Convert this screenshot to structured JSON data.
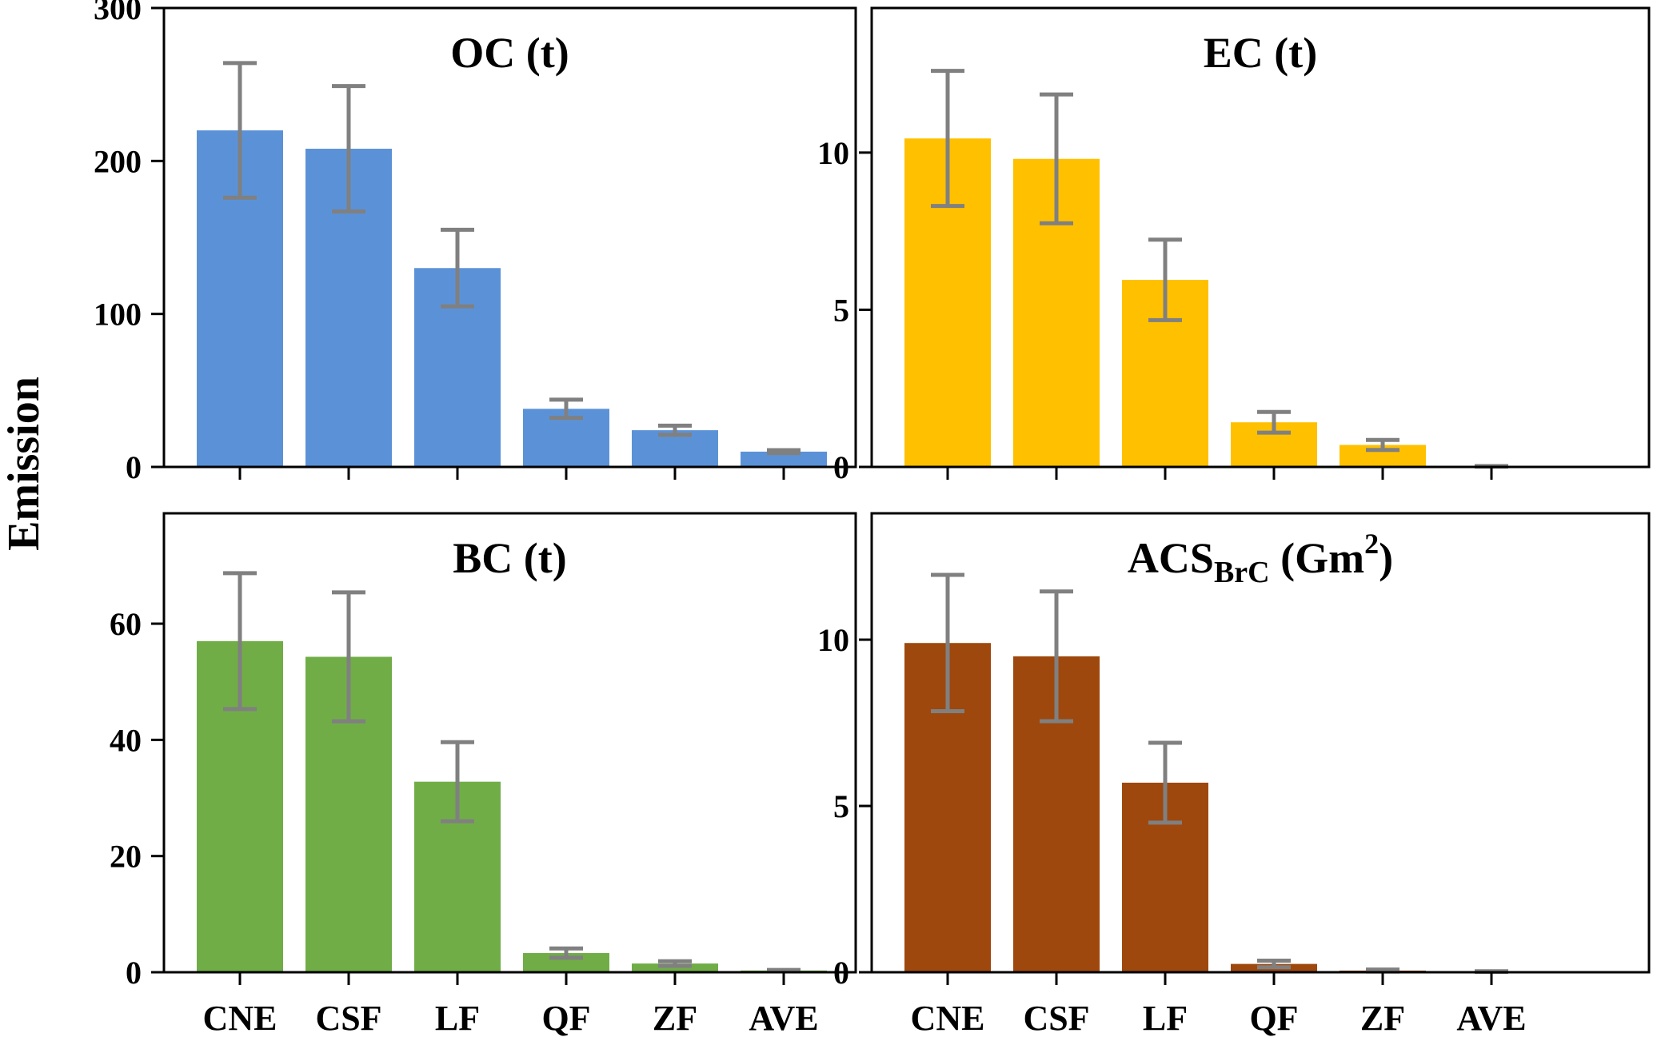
{
  "chart_data": {
    "type": "bar",
    "ylabel": "Emission",
    "categories": [
      "CNE",
      "CSF",
      "LF",
      "QF",
      "ZF",
      "AVE"
    ],
    "error_bar_color": "#808080",
    "panels": [
      {
        "id": "oc",
        "title": "OC (t)",
        "title_main": "OC (t)",
        "color": "#5B92D7",
        "ylim": [
          0,
          300
        ],
        "yticks": [
          0,
          100,
          200,
          300
        ],
        "values": [
          220,
          208,
          130,
          38,
          24,
          10
        ],
        "errors": [
          44,
          41,
          25,
          6,
          3,
          1
        ]
      },
      {
        "id": "ec",
        "title": "EC (t)",
        "title_main": "EC (t)",
        "color": "#FFC000",
        "ylim": [
          0,
          14.6
        ],
        "yticks": [
          0,
          5,
          10
        ],
        "values": [
          10.45,
          9.8,
          5.95,
          1.42,
          0.7,
          0.02
        ],
        "errors": [
          2.15,
          2.05,
          1.28,
          0.33,
          0.16,
          0.01
        ]
      },
      {
        "id": "bc",
        "title": "BC (t)",
        "title_main": "BC (t)",
        "color": "#70AD47",
        "ylim": [
          0,
          79
        ],
        "yticks": [
          0,
          20,
          40,
          60
        ],
        "values": [
          57,
          54.3,
          32.8,
          3.3,
          1.5,
          0.3
        ],
        "errors": [
          11.7,
          11.1,
          6.8,
          0.8,
          0.4,
          0.1
        ]
      },
      {
        "id": "acs",
        "title": "ACS_BrC (Gm^2)",
        "title_main": "ACS",
        "title_sub": "BrC",
        "title_rest": " (Gm",
        "title_sup": "2",
        "title_close": ")",
        "color": "#9E480E",
        "ylim": [
          0,
          13.8
        ],
        "yticks": [
          0,
          5,
          10
        ],
        "values": [
          9.9,
          9.5,
          5.7,
          0.25,
          0.05,
          0.02
        ],
        "errors": [
          2.05,
          1.95,
          1.2,
          0.1,
          0.03,
          0.01
        ]
      }
    ]
  }
}
